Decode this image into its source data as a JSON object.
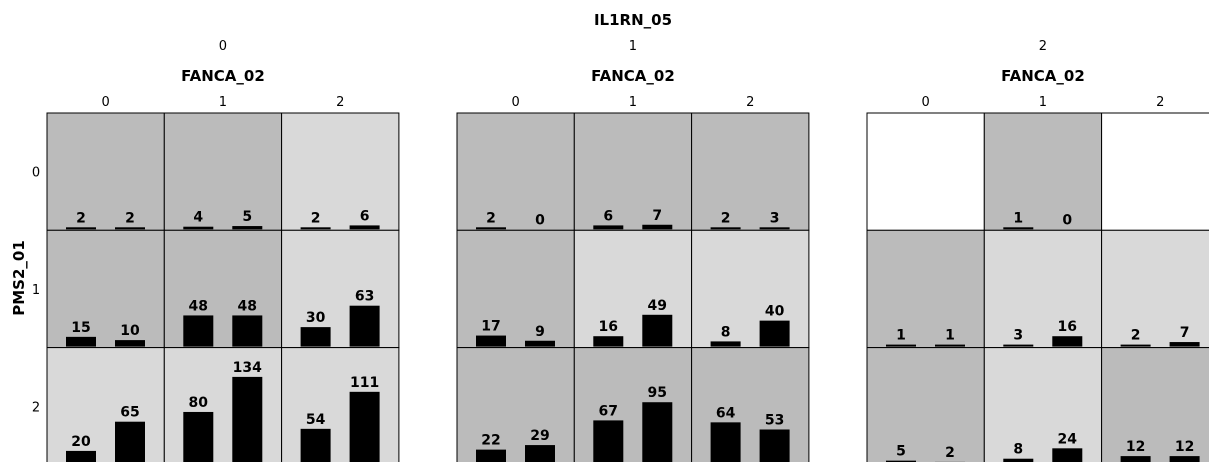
{
  "chart_data": {
    "type": "bar",
    "title": "IL1RN_05",
    "outer_col_var": "IL1RN_05",
    "outer_col_levels": [
      "0",
      "1",
      "2"
    ],
    "inner_col_var": "FANCA_02",
    "inner_col_levels": [
      "0",
      "1",
      "2"
    ],
    "row_var": "PMS2_01",
    "row_levels": [
      "0",
      "1",
      "2"
    ],
    "bar_scale_max": 134,
    "cell_colors": {
      "dark": "#bbbbbb",
      "light": "#d9d9d9",
      "empty": "#ffffff"
    },
    "bar_color": "#000000",
    "cells": [
      {
        "il1rn": "0",
        "fanca": "0",
        "pms2": "0",
        "values": [
          2,
          2
        ],
        "shade": "dark"
      },
      {
        "il1rn": "0",
        "fanca": "1",
        "pms2": "0",
        "values": [
          4,
          5
        ],
        "shade": "dark"
      },
      {
        "il1rn": "0",
        "fanca": "2",
        "pms2": "0",
        "values": [
          2,
          6
        ],
        "shade": "light"
      },
      {
        "il1rn": "0",
        "fanca": "0",
        "pms2": "1",
        "values": [
          15,
          10
        ],
        "shade": "dark"
      },
      {
        "il1rn": "0",
        "fanca": "1",
        "pms2": "1",
        "values": [
          48,
          48
        ],
        "shade": "dark"
      },
      {
        "il1rn": "0",
        "fanca": "2",
        "pms2": "1",
        "values": [
          30,
          63
        ],
        "shade": "light"
      },
      {
        "il1rn": "0",
        "fanca": "0",
        "pms2": "2",
        "values": [
          20,
          65
        ],
        "shade": "light"
      },
      {
        "il1rn": "0",
        "fanca": "1",
        "pms2": "2",
        "values": [
          80,
          134
        ],
        "shade": "light"
      },
      {
        "il1rn": "0",
        "fanca": "2",
        "pms2": "2",
        "values": [
          54,
          111
        ],
        "shade": "light"
      },
      {
        "il1rn": "1",
        "fanca": "0",
        "pms2": "0",
        "values": [
          2,
          0
        ],
        "shade": "dark"
      },
      {
        "il1rn": "1",
        "fanca": "1",
        "pms2": "0",
        "values": [
          6,
          7
        ],
        "shade": "dark"
      },
      {
        "il1rn": "1",
        "fanca": "2",
        "pms2": "0",
        "values": [
          2,
          3
        ],
        "shade": "dark"
      },
      {
        "il1rn": "1",
        "fanca": "0",
        "pms2": "1",
        "values": [
          17,
          9
        ],
        "shade": "dark"
      },
      {
        "il1rn": "1",
        "fanca": "1",
        "pms2": "1",
        "values": [
          16,
          49
        ],
        "shade": "light"
      },
      {
        "il1rn": "1",
        "fanca": "2",
        "pms2": "1",
        "values": [
          8,
          40
        ],
        "shade": "light"
      },
      {
        "il1rn": "1",
        "fanca": "0",
        "pms2": "2",
        "values": [
          22,
          29
        ],
        "shade": "dark"
      },
      {
        "il1rn": "1",
        "fanca": "1",
        "pms2": "2",
        "values": [
          67,
          95
        ],
        "shade": "dark"
      },
      {
        "il1rn": "1",
        "fanca": "2",
        "pms2": "2",
        "values": [
          64,
          53
        ],
        "shade": "dark"
      },
      {
        "il1rn": "2",
        "fanca": "0",
        "pms2": "0",
        "values": null,
        "shade": "empty"
      },
      {
        "il1rn": "2",
        "fanca": "1",
        "pms2": "0",
        "values": [
          1,
          0
        ],
        "shade": "dark"
      },
      {
        "il1rn": "2",
        "fanca": "2",
        "pms2": "0",
        "values": null,
        "shade": "empty"
      },
      {
        "il1rn": "2",
        "fanca": "0",
        "pms2": "1",
        "values": [
          1,
          1
        ],
        "shade": "dark"
      },
      {
        "il1rn": "2",
        "fanca": "1",
        "pms2": "1",
        "values": [
          3,
          16
        ],
        "shade": "light"
      },
      {
        "il1rn": "2",
        "fanca": "2",
        "pms2": "1",
        "values": [
          2,
          7
        ],
        "shade": "light"
      },
      {
        "il1rn": "2",
        "fanca": "0",
        "pms2": "2",
        "values": [
          5,
          2
        ],
        "shade": "dark"
      },
      {
        "il1rn": "2",
        "fanca": "1",
        "pms2": "2",
        "values": [
          8,
          24
        ],
        "shade": "light"
      },
      {
        "il1rn": "2",
        "fanca": "2",
        "pms2": "2",
        "values": [
          12,
          12
        ],
        "shade": "dark"
      }
    ]
  }
}
